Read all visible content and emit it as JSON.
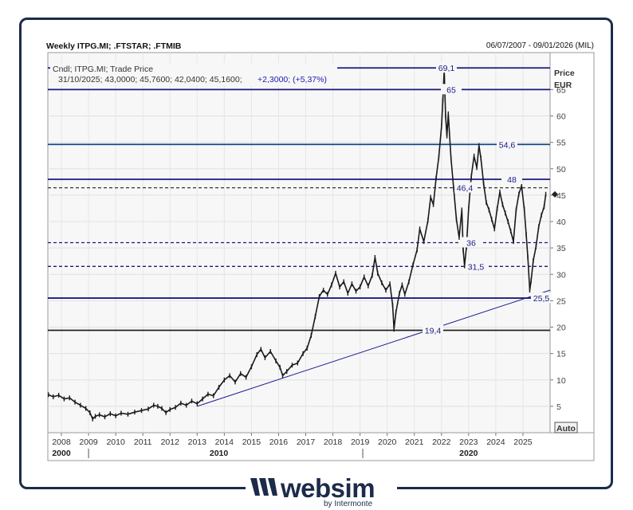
{
  "header": {
    "title": "Weekly ITPG.MI; .FTSTAR; .FTMIB",
    "date_range": "06/07/2007 - 09/01/2026 (MIL)"
  },
  "logo": {
    "text": "websim",
    "subtext": "by Intermonte"
  },
  "chart_data": {
    "type": "line",
    "title": "Weekly ITPG.MI; .FTSTAR; .FTMIB",
    "legend": {
      "line1": "Cndl; ITPG.MI; Trade Price",
      "line2_prefix": "31/10/2025; 43,0000; 45,7600; 42,0400; 45,1600;",
      "line2_change": "+2,3000; (+5,37%)"
    },
    "ylabel": "Price",
    "yunit": "EUR",
    "ylim": [
      0,
      72
    ],
    "yticks": [
      5,
      10,
      15,
      20,
      25,
      30,
      35,
      40,
      45,
      50,
      55,
      60,
      65
    ],
    "ytick_labels": [
      "5",
      "10",
      "15",
      "20",
      "25",
      "30",
      "35",
      "40",
      "45",
      "50",
      "55",
      "60",
      "65"
    ],
    "xlim": [
      2007.5,
      2026.0
    ],
    "xticks": [
      2008,
      2009,
      2010,
      2011,
      2012,
      2013,
      2014,
      2015,
      2016,
      2017,
      2018,
      2019,
      2020,
      2021,
      2022,
      2023,
      2024,
      2025
    ],
    "xtick_labels": [
      "2008",
      "2009",
      "2010",
      "2011",
      "2012",
      "2013",
      "2014",
      "2015",
      "2016",
      "2017",
      "2018",
      "2019",
      "2020",
      "2021",
      "2022",
      "2023",
      "2024",
      "2025"
    ],
    "decade_labels": [
      {
        "x": 2008,
        "label": "2000"
      },
      {
        "x": 2013.8,
        "label": "2010"
      },
      {
        "x": 2023.0,
        "label": "2020"
      }
    ],
    "decade_separators": [
      2009.0,
      2019.1
    ],
    "auto_label": "Auto",
    "grid": true,
    "last_price": 45.16,
    "series": [
      {
        "points": [
          [
            2007.52,
            7.2
          ],
          [
            2007.7,
            6.8
          ],
          [
            2007.9,
            7.1
          ],
          [
            2008.1,
            6.4
          ],
          [
            2008.3,
            6.6
          ],
          [
            2008.5,
            5.8
          ],
          [
            2008.7,
            5.2
          ],
          [
            2008.9,
            4.6
          ],
          [
            2009.05,
            3.8
          ],
          [
            2009.15,
            2.6
          ],
          [
            2009.25,
            3.1
          ],
          [
            2009.4,
            3.4
          ],
          [
            2009.6,
            3.0
          ],
          [
            2009.8,
            3.6
          ],
          [
            2010.0,
            3.2
          ],
          [
            2010.2,
            3.7
          ],
          [
            2010.45,
            3.5
          ],
          [
            2010.7,
            3.9
          ],
          [
            2010.95,
            4.2
          ],
          [
            2011.2,
            4.5
          ],
          [
            2011.4,
            5.2
          ],
          [
            2011.55,
            5.0
          ],
          [
            2011.7,
            4.6
          ],
          [
            2011.85,
            3.8
          ],
          [
            2012.0,
            4.4
          ],
          [
            2012.2,
            4.8
          ],
          [
            2012.4,
            5.6
          ],
          [
            2012.6,
            5.2
          ],
          [
            2012.8,
            6.0
          ],
          [
            2013.0,
            5.5
          ],
          [
            2013.2,
            6.4
          ],
          [
            2013.4,
            7.3
          ],
          [
            2013.6,
            7.0
          ],
          [
            2013.8,
            8.6
          ],
          [
            2014.0,
            10.0
          ],
          [
            2014.2,
            10.8
          ],
          [
            2014.4,
            9.6
          ],
          [
            2014.6,
            11.2
          ],
          [
            2014.8,
            10.5
          ],
          [
            2015.0,
            12.5
          ],
          [
            2015.2,
            14.8
          ],
          [
            2015.35,
            15.8
          ],
          [
            2015.5,
            14.2
          ],
          [
            2015.7,
            15.4
          ],
          [
            2015.9,
            13.6
          ],
          [
            2016.05,
            12.4
          ],
          [
            2016.15,
            10.8
          ],
          [
            2016.3,
            11.6
          ],
          [
            2016.5,
            12.8
          ],
          [
            2016.7,
            13.2
          ],
          [
            2016.9,
            15.0
          ],
          [
            2017.05,
            16.0
          ],
          [
            2017.2,
            18.4
          ],
          [
            2017.35,
            22.0
          ],
          [
            2017.5,
            25.8
          ],
          [
            2017.65,
            27.0
          ],
          [
            2017.8,
            26.2
          ],
          [
            2017.95,
            28.0
          ],
          [
            2018.1,
            30.2
          ],
          [
            2018.25,
            27.6
          ],
          [
            2018.4,
            28.6
          ],
          [
            2018.55,
            26.4
          ],
          [
            2018.7,
            28.2
          ],
          [
            2018.85,
            26.8
          ],
          [
            2019.0,
            27.6
          ],
          [
            2019.15,
            29.5
          ],
          [
            2019.3,
            27.8
          ],
          [
            2019.45,
            29.8
          ],
          [
            2019.55,
            33.2
          ],
          [
            2019.65,
            30.2
          ],
          [
            2019.8,
            28.4
          ],
          [
            2019.95,
            27.0
          ],
          [
            2020.1,
            28.2
          ],
          [
            2020.2,
            24.2
          ],
          [
            2020.25,
            19.6
          ],
          [
            2020.32,
            22.8
          ],
          [
            2020.45,
            26.4
          ],
          [
            2020.55,
            28.0
          ],
          [
            2020.65,
            26.2
          ],
          [
            2020.8,
            28.6
          ],
          [
            2020.95,
            31.8
          ],
          [
            2021.1,
            34.6
          ],
          [
            2021.2,
            38.6
          ],
          [
            2021.35,
            36.2
          ],
          [
            2021.5,
            40.2
          ],
          [
            2021.6,
            44.6
          ],
          [
            2021.7,
            43.2
          ],
          [
            2021.8,
            48.2
          ],
          [
            2021.9,
            52.2
          ],
          [
            2022.0,
            58.0
          ],
          [
            2022.05,
            63.0
          ],
          [
            2022.1,
            68.8
          ],
          [
            2022.15,
            60.0
          ],
          [
            2022.2,
            56.2
          ],
          [
            2022.25,
            60.4
          ],
          [
            2022.35,
            52.0
          ],
          [
            2022.45,
            46.2
          ],
          [
            2022.55,
            40.4
          ],
          [
            2022.65,
            37.0
          ],
          [
            2022.75,
            42.2
          ],
          [
            2022.8,
            34.6
          ],
          [
            2022.85,
            31.6
          ],
          [
            2022.92,
            35.2
          ],
          [
            2023.0,
            42.4
          ],
          [
            2023.1,
            48.6
          ],
          [
            2023.2,
            52.4
          ],
          [
            2023.3,
            50.2
          ],
          [
            2023.38,
            54.4
          ],
          [
            2023.45,
            52.0
          ],
          [
            2023.55,
            47.2
          ],
          [
            2023.65,
            43.6
          ],
          [
            2023.75,
            42.2
          ],
          [
            2023.85,
            40.4
          ],
          [
            2023.95,
            38.6
          ],
          [
            2024.05,
            42.4
          ],
          [
            2024.15,
            45.6
          ],
          [
            2024.25,
            43.2
          ],
          [
            2024.35,
            41.6
          ],
          [
            2024.45,
            40.0
          ],
          [
            2024.55,
            38.2
          ],
          [
            2024.65,
            36.2
          ],
          [
            2024.75,
            42.2
          ],
          [
            2024.85,
            45.2
          ],
          [
            2024.95,
            46.8
          ],
          [
            2025.05,
            42.4
          ],
          [
            2025.12,
            37.6
          ],
          [
            2025.18,
            33.2
          ],
          [
            2025.25,
            27.0
          ],
          [
            2025.3,
            28.8
          ],
          [
            2025.38,
            32.6
          ],
          [
            2025.48,
            35.2
          ],
          [
            2025.58,
            39.0
          ],
          [
            2025.68,
            41.2
          ],
          [
            2025.78,
            42.8
          ],
          [
            2025.84,
            45.16
          ]
        ]
      }
    ],
    "levels": [
      {
        "label": "69,1",
        "value": 69.1,
        "style": "solid",
        "color": "#1a1a7c"
      },
      {
        "label": "65",
        "value": 65.0,
        "style": "solid",
        "color": "#1a1a7c"
      },
      {
        "label": "54,6",
        "value": 54.6,
        "style": "solid",
        "color": "#154a8a"
      },
      {
        "label": "48",
        "value": 48.0,
        "style": "solid",
        "color": "#1a1a7c"
      },
      {
        "label": "46,4",
        "value": 46.4,
        "style": "dashed",
        "color": "#333333"
      },
      {
        "label": "36",
        "value": 36.0,
        "style": "dashed",
        "color": "#1a1a7c"
      },
      {
        "label": "31,5",
        "value": 31.5,
        "style": "dashed",
        "color": "#1a1a7c"
      },
      {
        "label": "25,5",
        "value": 25.5,
        "style": "solid",
        "color": "#1a1a7c"
      },
      {
        "label": "19,4",
        "value": 19.4,
        "style": "solid",
        "color": "#222222"
      }
    ],
    "trendline": {
      "from": [
        2013.0,
        5.0
      ],
      "to": [
        2026.0,
        27.0
      ],
      "color": "#1a1a9a"
    }
  }
}
